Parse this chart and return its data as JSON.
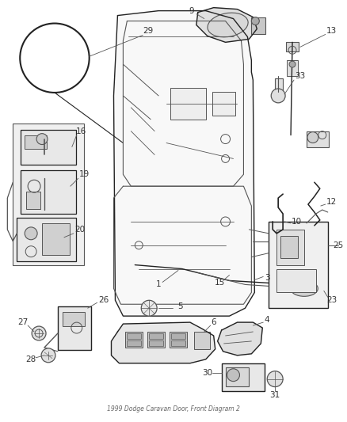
{
  "title": "1999 Dodge Caravan Door, Front Diagram 2",
  "bg_color": "#ffffff",
  "fig_width": 4.38,
  "fig_height": 5.33,
  "dpi": 100,
  "lc": "#555555",
  "tc": "#333333",
  "lc_dark": "#222222"
}
